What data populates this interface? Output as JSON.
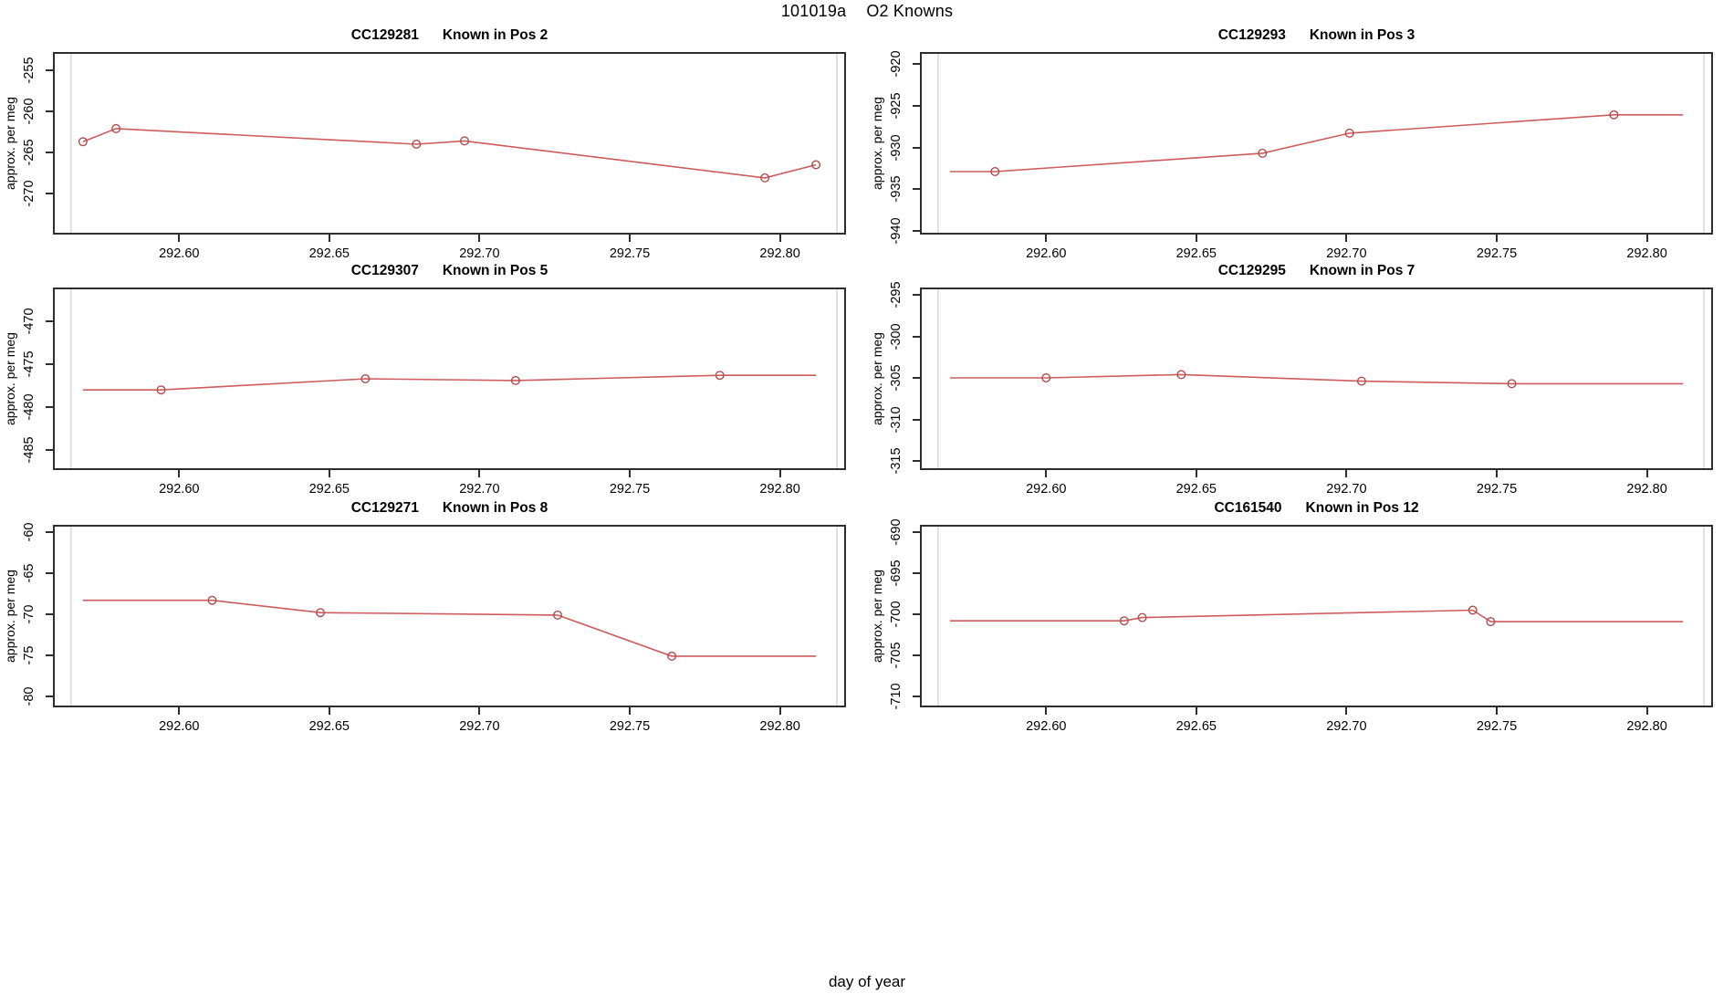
{
  "header": {
    "run_id": "101019a",
    "title": "O2 Knowns"
  },
  "footer": {
    "xlabel": "day of year"
  },
  "style": {
    "line_color": "#cd5c5c",
    "marker_color": "#b04c4c",
    "boundary_line_color": "#d9d9d9",
    "axis_color": "#2e2e2e",
    "background": "#ffffff"
  },
  "chart_data": [
    {
      "type": "line",
      "title_id": "CC129281",
      "title_pos": "Known in Pos 2",
      "ylabel": "approx. per meg",
      "xlim": [
        292.558,
        292.822
      ],
      "ylim": [
        -275.0,
        -252.78
      ],
      "xticks": [
        292.6,
        292.65,
        292.7,
        292.75,
        292.8
      ],
      "yticks": [
        -255,
        -260,
        -265,
        -270
      ],
      "boundary_vlines": [
        292.564,
        292.819
      ],
      "line": [
        [
          292.568,
          -263.7
        ],
        [
          292.579,
          -262.1
        ],
        [
          292.679,
          -264.0
        ],
        [
          292.695,
          -263.6
        ],
        [
          292.795,
          -268.1
        ],
        [
          292.812,
          -266.5
        ]
      ],
      "markers": [
        [
          292.568,
          -263.7
        ],
        [
          292.579,
          -262.1
        ],
        [
          292.679,
          -264.0
        ],
        [
          292.695,
          -263.6
        ],
        [
          292.795,
          -268.1
        ],
        [
          292.812,
          -266.5
        ]
      ]
    },
    {
      "type": "line",
      "title_id": "CC129293",
      "title_pos": "Known in Pos 3",
      "ylabel": "approx. per meg",
      "xlim": [
        292.558,
        292.822
      ],
      "ylim": [
        -940.44,
        -918.58
      ],
      "xticks": [
        292.6,
        292.65,
        292.7,
        292.75,
        292.8
      ],
      "yticks": [
        -920,
        -925,
        -930,
        -935,
        -940
      ],
      "boundary_vlines": [
        292.564,
        292.819
      ],
      "line": [
        [
          292.568,
          -932.9
        ],
        [
          292.583,
          -932.9
        ],
        [
          292.672,
          -930.7
        ],
        [
          292.701,
          -928.3
        ],
        [
          292.789,
          -926.1
        ],
        [
          292.812,
          -926.1
        ]
      ],
      "markers": [
        [
          292.583,
          -932.9
        ],
        [
          292.672,
          -930.7
        ],
        [
          292.701,
          -928.3
        ],
        [
          292.789,
          -926.1
        ]
      ]
    },
    {
      "type": "line",
      "title_id": "CC129307",
      "title_pos": "Known in Pos 5",
      "ylabel": "approx. per meg",
      "xlim": [
        292.558,
        292.822
      ],
      "ylim": [
        -487.34,
        -466.06
      ],
      "xticks": [
        292.6,
        292.65,
        292.7,
        292.75,
        292.8
      ],
      "yticks": [
        -470,
        -475,
        -480,
        -485
      ],
      "boundary_vlines": [
        292.564,
        292.819
      ],
      "line": [
        [
          292.568,
          -478.0
        ],
        [
          292.594,
          -478.0
        ],
        [
          292.662,
          -476.7
        ],
        [
          292.712,
          -476.9
        ],
        [
          292.78,
          -476.3
        ],
        [
          292.812,
          -476.3
        ]
      ],
      "markers": [
        [
          292.594,
          -478.0
        ],
        [
          292.662,
          -476.7
        ],
        [
          292.712,
          -476.9
        ],
        [
          292.78,
          -476.3
        ]
      ]
    },
    {
      "type": "line",
      "title_id": "CC129295",
      "title_pos": "Known in Pos 7",
      "ylabel": "approx. per meg",
      "xlim": [
        292.558,
        292.822
      ],
      "ylim": [
        -316.1,
        -294.12
      ],
      "xticks": [
        292.6,
        292.65,
        292.7,
        292.75,
        292.8
      ],
      "yticks": [
        -295,
        -300,
        -305,
        -310,
        -315
      ],
      "boundary_vlines": [
        292.564,
        292.819
      ],
      "line": [
        [
          292.568,
          -305.0
        ],
        [
          292.6,
          -305.0
        ],
        [
          292.645,
          -304.6
        ],
        [
          292.705,
          -305.4
        ],
        [
          292.755,
          -305.7
        ],
        [
          292.812,
          -305.7
        ]
      ],
      "markers": [
        [
          292.6,
          -305.0
        ],
        [
          292.645,
          -304.6
        ],
        [
          292.705,
          -305.4
        ],
        [
          292.755,
          -305.7
        ]
      ]
    },
    {
      "type": "line",
      "title_id": "CC129271",
      "title_pos": "Known in Pos 8",
      "ylabel": "approx. per meg",
      "xlim": [
        292.558,
        292.822
      ],
      "ylim": [
        -81.33,
        -59.11
      ],
      "xticks": [
        292.6,
        292.65,
        292.7,
        292.75,
        292.8
      ],
      "yticks": [
        -60,
        -65,
        -70,
        -75,
        -80
      ],
      "boundary_vlines": [
        292.564,
        292.819
      ],
      "line": [
        [
          292.568,
          -68.3
        ],
        [
          292.611,
          -68.3
        ],
        [
          292.647,
          -69.8
        ],
        [
          292.726,
          -70.1
        ],
        [
          292.764,
          -75.1
        ],
        [
          292.812,
          -75.1
        ]
      ],
      "markers": [
        [
          292.611,
          -68.3
        ],
        [
          292.647,
          -69.8
        ],
        [
          292.726,
          -70.1
        ],
        [
          292.764,
          -75.1
        ]
      ]
    },
    {
      "type": "line",
      "title_id": "CC161540",
      "title_pos": "Known in Pos 12",
      "ylabel": "approx. per meg",
      "xlim": [
        292.558,
        292.822
      ],
      "ylim": [
        -711.33,
        -689.11
      ],
      "xticks": [
        292.6,
        292.65,
        292.7,
        292.75,
        292.8
      ],
      "yticks": [
        -690,
        -695,
        -700,
        -705,
        -710
      ],
      "boundary_vlines": [
        292.564,
        292.819
      ],
      "line": [
        [
          292.568,
          -700.8
        ],
        [
          292.626,
          -700.8
        ],
        [
          292.632,
          -700.4
        ],
        [
          292.742,
          -699.5
        ],
        [
          292.748,
          -700.9
        ],
        [
          292.812,
          -700.9
        ]
      ],
      "markers": [
        [
          292.626,
          -700.8
        ],
        [
          292.632,
          -700.4
        ],
        [
          292.742,
          -699.5
        ],
        [
          292.748,
          -700.9
        ]
      ]
    }
  ]
}
